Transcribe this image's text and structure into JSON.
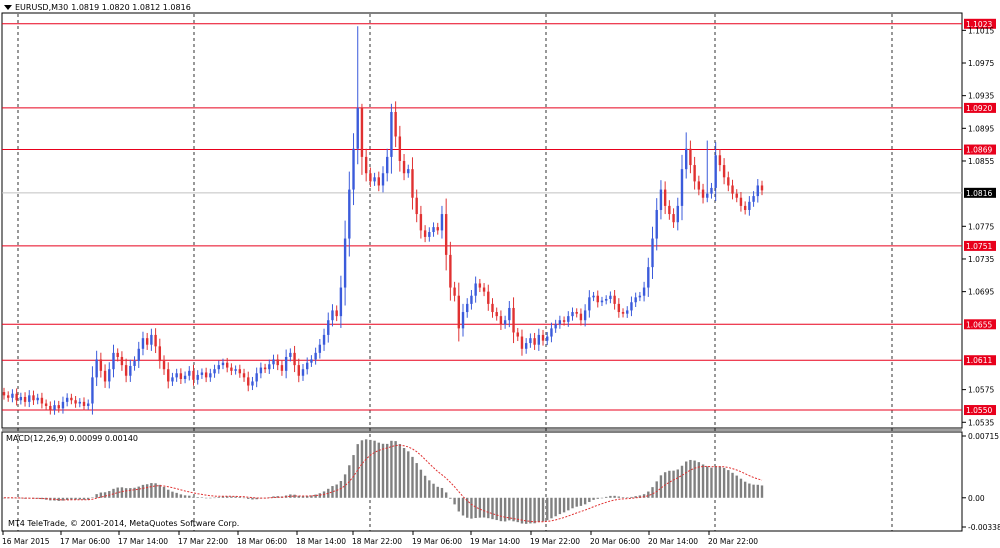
{
  "header": {
    "symbol": "EURUSD,M30",
    "ohlc": "1.0819 1.0820 1.0812 1.0816"
  },
  "price_axis": {
    "ticks": [
      "1.1015",
      "1.0975",
      "1.0935",
      "1.0895",
      "1.0855",
      "1.0775",
      "1.0735",
      "1.0695",
      "1.0575",
      "1.0535"
    ],
    "current_price": "1.0816"
  },
  "levels": [
    {
      "label": "1.1023",
      "value": 1.1023
    },
    {
      "label": "1.0920",
      "value": 1.092
    },
    {
      "label": "1.0869",
      "value": 1.0869
    },
    {
      "label": "1.0751",
      "value": 1.0751
    },
    {
      "label": "1.0655",
      "value": 1.0655
    },
    {
      "label": "1.0611",
      "value": 1.0611
    },
    {
      "label": "1.0550",
      "value": 1.055
    }
  ],
  "macd": {
    "label": "MACD(12,26,9) 0.00099 0.00140",
    "axis_ticks": [
      "0.00715",
      "0.00",
      "-0.00338"
    ]
  },
  "time_axis": [
    "16 Mar 2015",
    "17 Mar 06:00",
    "17 Mar 14:00",
    "17 Mar 22:00",
    "18 Mar 06:00",
    "18 Mar 14:00",
    "18 Mar 22:00",
    "19 Mar 06:00",
    "19 Mar 14:00",
    "19 Mar 22:00",
    "20 Mar 06:00",
    "20 Mar 14:00",
    "20 Mar 22:00"
  ],
  "copyright": "MT4 TeleTrade, © 2001-2014, MetaQuotes Software Corp.",
  "colors": {
    "bull": "#3b5bdb",
    "bear": "#e03131",
    "level": "#e8001c",
    "macd_hist": "#808080",
    "signal": "#e03131",
    "grid": "#000000",
    "current_line": "#c0c0c0"
  },
  "chart_data": {
    "type": "candlestick",
    "timeframe": "M30",
    "closes": [
      1.0568,
      1.0565,
      1.057,
      1.0562,
      1.0566,
      1.056,
      1.0568,
      1.0562,
      1.0565,
      1.0558,
      1.0555,
      1.055,
      1.0556,
      1.0552,
      1.056,
      1.0565,
      1.0562,
      1.0558,
      1.056,
      1.0555,
      1.0558,
      1.059,
      1.0612,
      1.0598,
      1.0585,
      1.06,
      1.062,
      1.0615,
      1.0605,
      1.0592,
      1.0604,
      1.061,
      1.0625,
      1.0638,
      1.063,
      1.0642,
      1.0628,
      1.061,
      1.06,
      1.0585,
      1.059,
      1.0595,
      1.0588,
      1.0592,
      1.0598,
      1.0587,
      1.0593,
      1.0596,
      1.059,
      1.0595,
      1.06,
      1.0605,
      1.0608,
      1.0602,
      1.0598,
      1.06,
      1.0595,
      1.059,
      1.058,
      1.0585,
      1.0595,
      1.0602,
      1.06,
      1.0606,
      1.0612,
      1.0605,
      1.0598,
      1.0615,
      1.062,
      1.0605,
      1.0592,
      1.06,
      1.0608,
      1.0612,
      1.062,
      1.063,
      1.0642,
      1.066,
      1.0672,
      1.0665,
      1.07,
      1.076,
      1.082,
      1.087,
      1.092,
      1.086,
      1.084,
      1.083,
      1.0835,
      1.0825,
      1.084,
      1.086,
      1.0915,
      1.0885,
      1.0855,
      1.084,
      1.0845,
      1.081,
      1.079,
      1.077,
      1.0762,
      1.0768,
      1.0774,
      1.077,
      1.079,
      1.074,
      1.07,
      1.069,
      1.065,
      1.067,
      1.068,
      1.069,
      1.0705,
      1.07,
      1.0695,
      1.068,
      1.067,
      1.0665,
      1.0655,
      1.066,
      1.0675,
      1.0645,
      1.064,
      1.0625,
      1.0632,
      1.0638,
      1.063,
      1.0642,
      1.0635,
      1.064,
      1.065,
      1.0655,
      1.066,
      1.0658,
      1.0665,
      1.067,
      1.0668,
      1.066,
      1.0672,
      1.0688,
      1.069,
      1.0682,
      1.0684,
      1.0686,
      1.069,
      1.068,
      1.067,
      1.0668,
      1.0672,
      1.0682,
      1.0688,
      1.069,
      1.07,
      1.0725,
      1.076,
      1.0795,
      1.082,
      1.08,
      1.079,
      1.078,
      1.08,
      1.0845,
      1.087,
      1.085,
      1.083,
      1.082,
      1.081,
      1.0815,
      1.0822,
      1.0862,
      1.085,
      1.0835,
      1.0825,
      1.0815,
      1.081,
      1.08,
      1.0795,
      1.0805,
      1.0812,
      1.0825,
      1.0819
    ]
  }
}
